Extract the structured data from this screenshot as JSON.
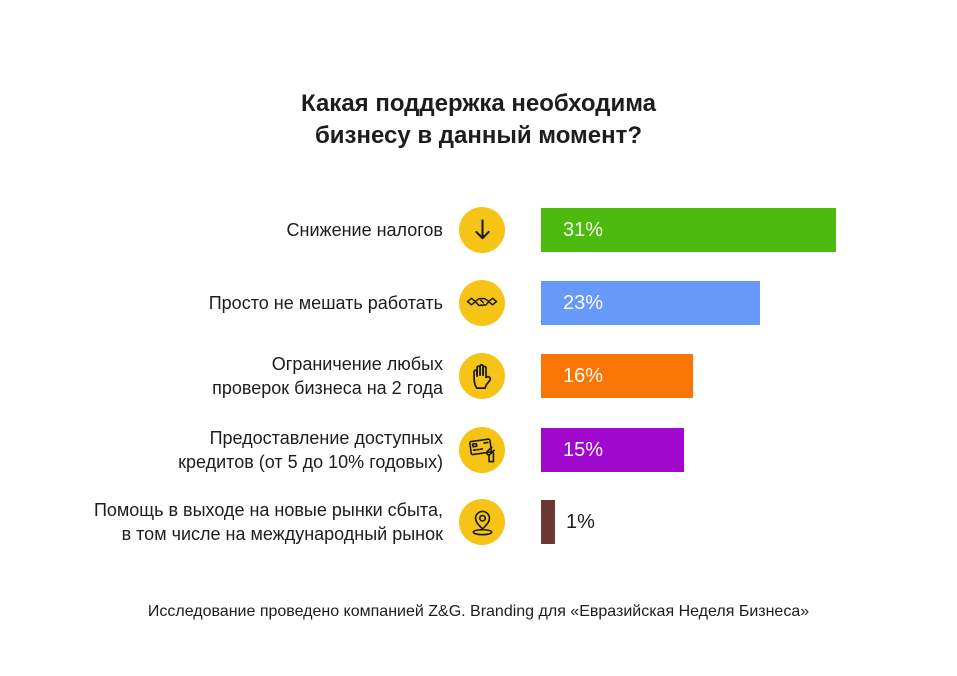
{
  "title": {
    "line1": "Какая поддержка необходима",
    "line2": "бизнесу в данный момент?"
  },
  "footer": "Исследование проведено компанией Z&G. Branding для «Евразийская Неделя Бизнеса»",
  "icon_style": {
    "circle_color": "#f5c417",
    "glyph_color": "#1d1d1b"
  },
  "rows": [
    {
      "label_lines": [
        "Снижение налогов"
      ],
      "value": 31,
      "value_label": "31%",
      "color": "#4cbb0e",
      "icon": "arrow-down-icon"
    },
    {
      "label_lines": [
        "Просто не мешать работать"
      ],
      "value": 23,
      "value_label": "23%",
      "color": "#6699fa",
      "icon": "handshake-icon"
    },
    {
      "label_lines": [
        "Ограничение любых",
        "проверок бизнеса на 2 года"
      ],
      "value": 16,
      "value_label": "16%",
      "color": "#f97506",
      "icon": "stop-hand-icon"
    },
    {
      "label_lines": [
        "Предоставление доступных",
        "кредитов (от 5 до 10% годовых)"
      ],
      "value": 15,
      "value_label": "15%",
      "color": "#a108cd",
      "icon": "credit-card-in-hand-icon"
    },
    {
      "label_lines": [
        "Помощь в выходе на новые рынки сбыта,",
        "в том числе на международный рынок"
      ],
      "value": 1,
      "value_label": "1%",
      "color": "#6a3937",
      "icon": "location-pin-icon"
    }
  ],
  "chart_data": {
    "type": "bar",
    "orientation": "horizontal",
    "title": "Какая поддержка необходима бизнесу в данный момент?",
    "categories": [
      "Снижение налогов",
      "Просто не мешать работать",
      "Ограничение любых проверок бизнеса на 2 года",
      "Предоставление доступных кредитов (от 5 до 10% годовых)",
      "Помощь в выходе на новые рынки сбыта, в том числе на международный рынок"
    ],
    "values": [
      31,
      23,
      16,
      15,
      1
    ],
    "value_labels": [
      "31%",
      "23%",
      "16%",
      "15%",
      "1%"
    ],
    "unit": "%",
    "colors": [
      "#4cbb0e",
      "#6699fa",
      "#f97506",
      "#a108cd",
      "#6a3937"
    ],
    "icons": [
      "arrow-down-icon",
      "handshake-icon",
      "stop-hand-icon",
      "credit-card-in-hand-icon",
      "location-pin-icon"
    ],
    "xlim": [
      0,
      31
    ],
    "grid": false,
    "legend": false,
    "axes_visible": false,
    "source_note": "Исследование проведено компанией Z&G. Branding для «Евразийская Неделя Бизнеса»"
  }
}
